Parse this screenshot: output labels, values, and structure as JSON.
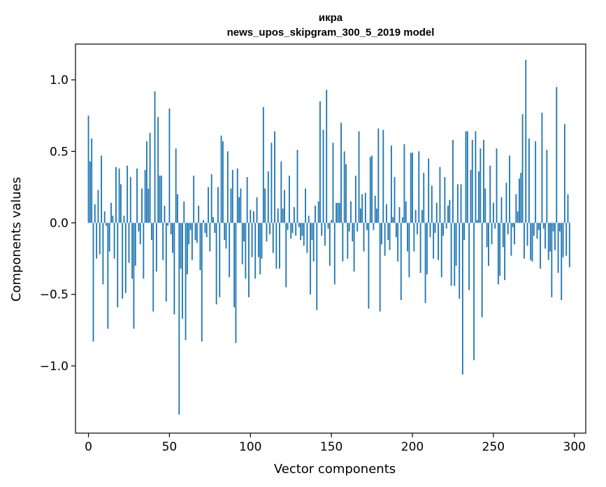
{
  "chart_data": {
    "type": "bar",
    "title": "икра",
    "subtitle": "news_upos_skipgram_300_5_2019 model",
    "xlabel": "Vector components",
    "ylabel": "Components values",
    "xlim": [
      -8,
      307
    ],
    "ylim": [
      -1.47,
      1.25
    ],
    "x_ticks": [
      0,
      50,
      100,
      150,
      200,
      250,
      300
    ],
    "x_tick_labels": [
      "0",
      "50",
      "100",
      "150",
      "200",
      "250",
      "300"
    ],
    "y_ticks": [
      -1.0,
      -0.5,
      0.0,
      0.5,
      1.0
    ],
    "y_tick_labels": [
      "−1.0",
      "−0.5",
      "0.0",
      "0.5",
      "1.0"
    ],
    "grid": false,
    "bar_color": "#1f77b4",
    "values": [
      0.75,
      0.43,
      0.59,
      -0.83,
      0.13,
      -0.25,
      0.23,
      -0.22,
      0.47,
      -0.43,
      0.08,
      -0.02,
      -0.74,
      -0.2,
      0.14,
      0.05,
      -0.25,
      0.39,
      -0.59,
      0.38,
      0.27,
      -0.53,
      0.05,
      -0.49,
      0.4,
      -0.28,
      0.32,
      -0.39,
      -0.74,
      -0.3,
      0.38,
      -0.06,
      -0.15,
      0.24,
      -0.39,
      0.37,
      0.57,
      0.24,
      0.63,
      -0.12,
      -0.62,
      0.92,
      -0.34,
      0.74,
      0.33,
      0.33,
      -0.26,
      0.12,
      -0.55,
      -0.02,
      0.8,
      -0.08,
      -0.21,
      -0.64,
      0.52,
      0.2,
      -1.34,
      -0.32,
      -0.67,
      0.15,
      -0.82,
      -0.36,
      -0.15,
      -0.05,
      -0.26,
      0.33,
      -0.12,
      -0.14,
      0.12,
      -0.33,
      -0.83,
      0.02,
      -0.07,
      -0.1,
      0.25,
      -0.2,
      0.34,
      0.04,
      -0.07,
      -0.57,
      0.25,
      -0.52,
      0.61,
      0.57,
      -0.12,
      -0.18,
      0.5,
      -0.38,
      0.24,
      0.37,
      -0.59,
      -0.84,
      0.38,
      0.18,
      0.24,
      -0.29,
      -0.13,
      -0.39,
      0.32,
      -0.52,
      0.09,
      -0.24,
      0.08,
      -0.39,
      0.18,
      -0.24,
      -0.36,
      -0.25,
      0.81,
      0.24,
      -0.13,
      0.36,
      -0.08,
      0.56,
      -0.21,
      0.64,
      -0.32,
      0.1,
      -0.32,
      0.43,
      0.1,
      0.23,
      -0.45,
      -0.05,
      0.33,
      -0.11,
      -0.07,
      0.11,
      -0.09,
      0.51,
      -0.03,
      -0.12,
      -0.09,
      -0.16,
      0.24,
      -0.21,
      0.05,
      -0.5,
      -0.12,
      -0.27,
      0.12,
      -0.61,
      0.15,
      0.85,
      -0.09,
      0.65,
      -0.16,
      0.93,
      -0.04,
      -0.3,
      0.02,
      0.56,
      -0.43,
      0.14,
      0.14,
      0.14,
      0.7,
      -0.27,
      0.5,
      0.41,
      -0.25,
      -0.06,
      0.15,
      -0.13,
      -0.34,
      0.33,
      -0.06,
      0.64,
      0.1,
      0.2,
      -0.2,
      0.21,
      -0.05,
      -0.6,
      0.46,
      0.47,
      -0.05,
      0.19,
      0.1,
      0.66,
      -0.62,
      -0.15,
      0.65,
      -0.23,
      0.13,
      -0.12,
      -0.19,
      0.54,
      0.04,
      0.32,
      -0.1,
      -0.27,
      0.11,
      -0.54,
      0.04,
      0.55,
      0.15,
      -0.2,
      -0.38,
      0.49,
      0.49,
      -0.2,
      0.09,
      -0.08,
      0.5,
      -0.35,
      0.09,
      0.35,
      -0.56,
      -0.36,
      0.45,
      -0.1,
      0.26,
      -0.25,
      -0.07,
      0.14,
      -0.26,
      0.39,
      -0.38,
      -0.09,
      0.32,
      -0.04,
      0.12,
      0.16,
      -0.44,
      0.58,
      -0.44,
      -0.3,
      0.27,
      -0.53,
      0.27,
      -1.06,
      -0.12,
      0.64,
      0.64,
      -0.47,
      0.37,
      0.58,
      -0.96,
      0.64,
      0.02,
      0.36,
      0.52,
      -0.66,
      0.58,
      0.24,
      -0.17,
      -0.3,
      0.4,
      -0.15,
      0.14,
      -0.04,
      0.52,
      -0.43,
      -0.37,
      0.18,
      -0.17,
      -0.4,
      0.28,
      -0.08,
      0.47,
      -0.23,
      -0.03,
      -0.15,
      0.2,
      0.08,
      0.31,
      0.35,
      0.76,
      -0.25,
      1.14,
      -0.16,
      0.59,
      -0.26,
      -0.27,
      -0.09,
      0.57,
      -0.11,
      -0.05,
      -0.32,
      0.77,
      -0.04,
      -0.18,
      0.51,
      -0.26,
      -0.2,
      -0.52,
      -0.06,
      -0.19,
      0.95,
      -0.35,
      -0.06,
      -0.54,
      -0.24,
      0.69,
      -0.23,
      0.2,
      -0.31
    ]
  }
}
